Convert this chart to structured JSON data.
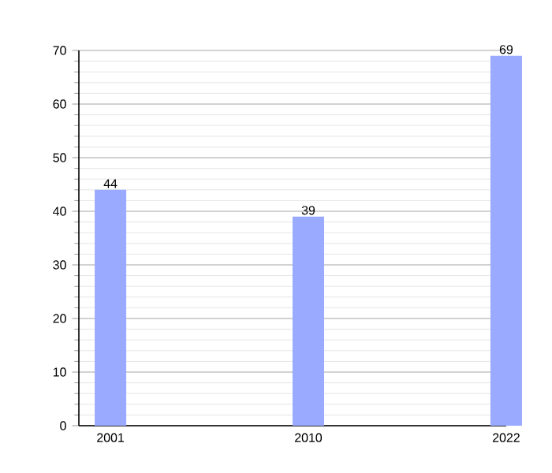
{
  "chart_data": {
    "type": "bar",
    "categories": [
      "2001",
      "2010",
      "2022"
    ],
    "values": [
      44,
      39,
      69
    ],
    "color": "#99aaff",
    "ylim": [
      0,
      70
    ],
    "yticks": [
      0,
      10,
      20,
      30,
      40,
      50,
      60,
      70
    ],
    "grid": "y",
    "data_labels": true
  }
}
